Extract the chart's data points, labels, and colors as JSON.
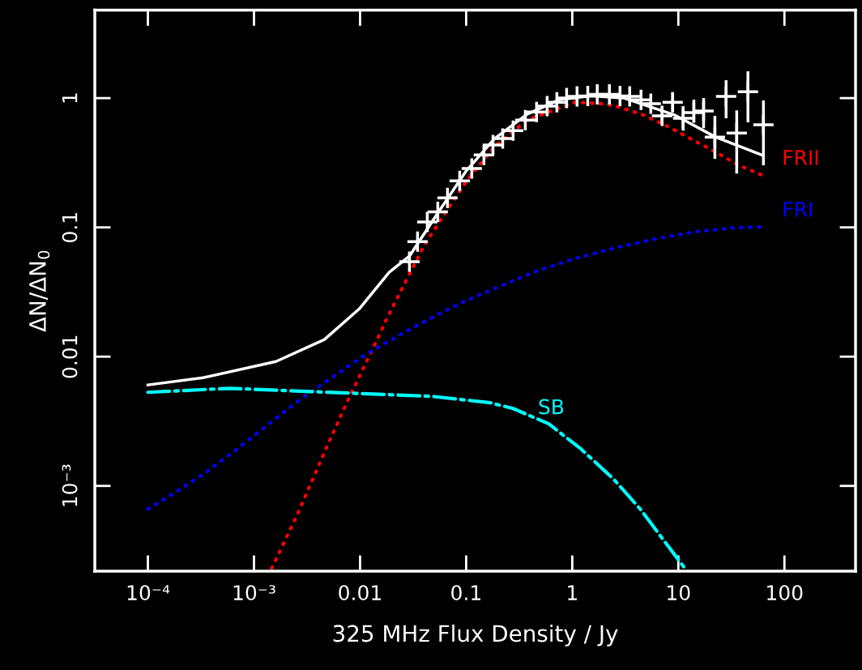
{
  "chart_data": {
    "type": "line",
    "xlabel": "325 MHz Flux Density / Jy",
    "ylabel": "ΔN/ΔN$_{0}$",
    "log": "xy",
    "grid": false,
    "legend": false,
    "xlim": [
      3.16e-05,
      468
    ],
    "ylim": [
      0.000219,
      4.8
    ],
    "xticks": [
      {
        "value": 0.0001,
        "label": "10⁻⁴"
      },
      {
        "value": 0.001,
        "label": "10⁻³"
      },
      0.01,
      0.1,
      1,
      10,
      100
    ],
    "yticks": [
      {
        "value": 0.001,
        "label": "10⁻³"
      },
      0.01,
      0.1,
      1
    ],
    "series": [
      {
        "color": "#ffffff",
        "line_style": "solid",
        "x": [
          0.0001,
          0.00033,
          0.00161,
          0.00461,
          0.00982,
          0.0188,
          0.0292,
          0.054,
          0.1,
          0.185,
          0.374,
          0.755,
          1.52,
          3.08,
          5.22,
          9.31,
          22.4,
          61.1
        ],
        "values": [
          0.00604,
          0.00687,
          0.00917,
          0.01355,
          0.0234,
          0.0449,
          0.0599,
          0.129,
          0.273,
          0.486,
          0.749,
          0.972,
          1.04,
          1.0,
          0.866,
          0.738,
          0.5,
          0.364
        ]
      },
      {
        "name": "FRII",
        "color": "#ff0000",
        "line_style": "dotted",
        "x": [
          0.00147,
          0.00258,
          0.00461,
          0.00741,
          0.01256,
          0.0179,
          0.0267,
          0.0401,
          0.0645,
          0.1036,
          0.185,
          0.374,
          1.07,
          1.92,
          2.58,
          4.53,
          7.68,
          13.0,
          22.1,
          36.1,
          61.1
        ],
        "values": [
          0.000231,
          0.000608,
          0.00182,
          0.00432,
          0.0106,
          0.0197,
          0.0377,
          0.0722,
          0.132,
          0.236,
          0.421,
          0.677,
          0.93,
          0.904,
          0.866,
          0.749,
          0.612,
          0.486,
          0.386,
          0.306,
          0.254
        ]
      },
      {
        "name": "FRI",
        "color": "#0000ff",
        "line_style": "dotted",
        "x": [
          0.0001,
          0.000164,
          0.000342,
          0.000692,
          0.00135,
          0.00272,
          0.0057,
          0.0117,
          0.0254,
          0.054,
          0.0916,
          0.209,
          0.47,
          1.07,
          2.49,
          5.9,
          14.2,
          34.2,
          61.1
        ],
        "values": [
          0.000662,
          0.000847,
          0.00125,
          0.00193,
          0.00297,
          0.00466,
          0.00708,
          0.0106,
          0.0152,
          0.0212,
          0.0263,
          0.0351,
          0.0462,
          0.0574,
          0.0692,
          0.0811,
          0.0924,
          0.0993,
          0.101
        ]
      },
      {
        "name": "SB",
        "color": "#00ffff",
        "line_style": "dashdot",
        "x": [
          0.0001,
          0.00059,
          0.00342,
          0.00824,
          0.0478,
          0.169,
          0.277,
          0.601,
          1.21,
          2.45,
          4.38,
          7.41,
          11.5
        ],
        "values": [
          0.0053,
          0.00569,
          0.00537,
          0.00522,
          0.00493,
          0.0044,
          0.00397,
          0.00302,
          0.00193,
          0.00113,
          0.000662,
          0.000372,
          0.000231
        ]
      },
      {
        "type": "scatter",
        "color": "#ffffff",
        "marker": "cross",
        "x": [
          0.0292,
          0.0348,
          0.043,
          0.054,
          0.0667,
          0.0869,
          0.113,
          0.147,
          0.179,
          0.221,
          0.277,
          0.361,
          0.461,
          0.58,
          0.716,
          0.885,
          1.11,
          1.4,
          1.72,
          2.24,
          2.82,
          3.48,
          4.45,
          5.5,
          7.03,
          8.84,
          11.1,
          14.0,
          17.3,
          22.1,
          28.2,
          35.5,
          45.3,
          63.4
        ],
        "values": [
          0.0542,
          0.0777,
          0.11,
          0.132,
          0.169,
          0.229,
          0.285,
          0.364,
          0.433,
          0.486,
          0.561,
          0.677,
          0.782,
          0.866,
          0.93,
          1.0,
          1.03,
          1.04,
          1.07,
          1.07,
          1.04,
          1.03,
          0.97,
          0.904,
          0.728,
          0.93,
          0.697,
          0.771,
          0.794,
          0.5,
          1.03,
          0.537,
          1.12,
          0.621
        ],
        "errors": [
          null,
          null,
          null,
          null,
          null,
          null,
          null,
          null,
          null,
          null,
          null,
          null,
          null,
          null,
          null,
          null,
          null,
          null,
          null,
          null,
          null,
          null,
          null,
          null,
          [
            0.63,
            0.866
          ],
          [
            0.782,
            1.106
          ],
          [
            0.561,
            0.866
          ],
          [
            0.649,
            0.972
          ],
          [
            0.586,
            1.0
          ],
          [
            0.339,
            0.728
          ],
          [
            0.697,
            1.374
          ],
          [
            0.261,
            0.805
          ],
          [
            0.649,
            1.61
          ],
          [
            0.302,
            0.958
          ]
        ]
      }
    ]
  }
}
